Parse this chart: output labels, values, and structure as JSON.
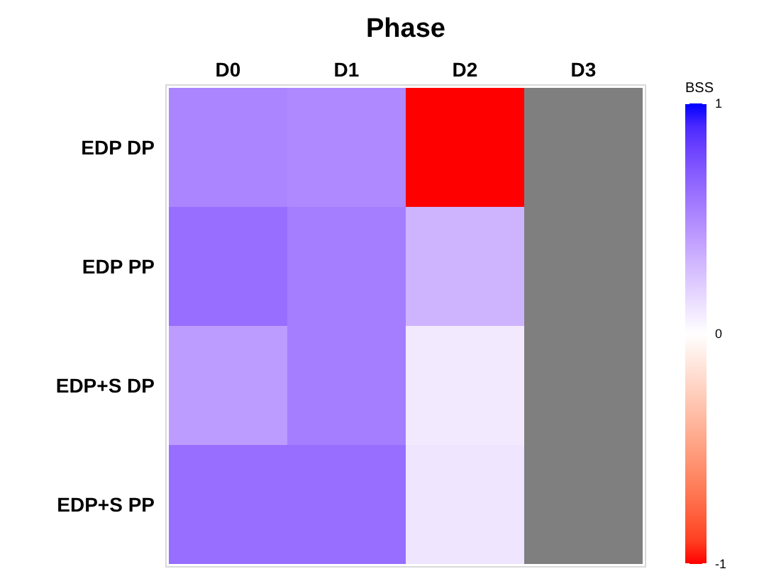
{
  "chart_data": {
    "type": "heatmap",
    "title": "Phase",
    "clabel": "BSS",
    "categories": [
      "D0",
      "D1",
      "D2",
      "D3"
    ],
    "y_categories": [
      "EDP DP",
      "EDP PP",
      "EDP+S DP",
      "EDP+S PP"
    ],
    "cells": [
      [
        0.52,
        0.5,
        -1,
        null
      ],
      [
        0.62,
        0.55,
        0.32,
        null
      ],
      [
        0.42,
        0.55,
        0.09,
        null
      ],
      [
        0.62,
        0.62,
        0.11,
        null
      ]
    ],
    "clim": [
      -1,
      1
    ],
    "cticks": [
      -1,
      0,
      1
    ]
  }
}
